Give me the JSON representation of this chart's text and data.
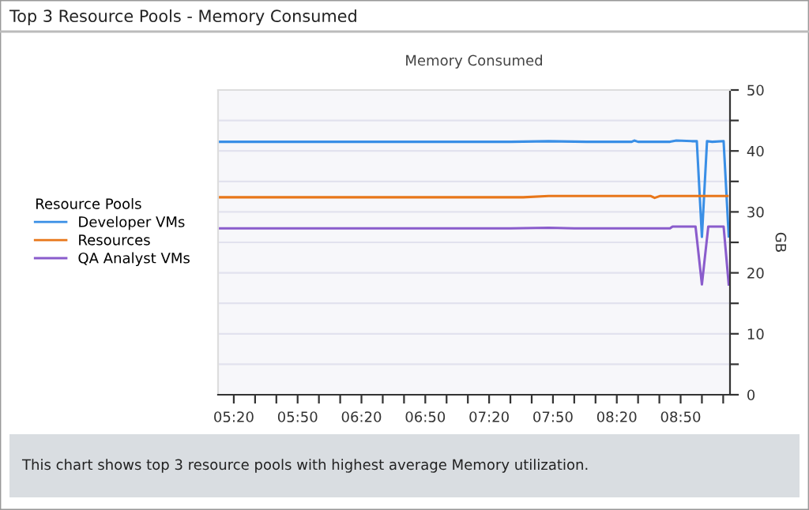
{
  "chart_data": {
    "type": "line",
    "title": "Top 3 Resource Pools - Memory Consumed",
    "subtitle": "Memory Consumed",
    "ylabel": "GB",
    "legend_title": "Resource Pools",
    "annotations": [
      "This chart shows top 3 resource pools with highest average Memory utilization."
    ],
    "series": [
      {
        "name": "Developer VMs",
        "color": "#3a8fe6",
        "x": [
          5.21,
          7.5,
          7.8,
          8.1,
          8.45,
          8.47,
          8.5,
          8.75,
          8.8,
          8.92,
          8.96,
          9.0,
          9.04,
          9.08,
          9.17,
          9.21
        ],
        "values": [
          41.5,
          41.5,
          41.6,
          41.5,
          41.5,
          41.7,
          41.5,
          41.5,
          41.7,
          41.6,
          41.6,
          25.9,
          41.6,
          41.5,
          41.6,
          26
        ]
      },
      {
        "name": "Resources",
        "color": "#e8771a",
        "x": [
          5.21,
          7.6,
          7.8,
          8.6,
          8.63,
          8.67,
          9.2
        ],
        "values": [
          32.4,
          32.4,
          32.6,
          32.6,
          32.3,
          32.6,
          32.6
        ]
      },
      {
        "name": "QA Analyst VMs",
        "color": "#8a5ccc",
        "x": [
          5.21,
          7.5,
          7.8,
          8.0,
          8.75,
          8.77,
          8.95,
          9.0,
          9.05,
          9.17,
          9.21
        ],
        "values": [
          27.3,
          27.3,
          27.4,
          27.3,
          27.3,
          27.6,
          27.6,
          18.1,
          27.6,
          27.6,
          18.1
        ]
      }
    ],
    "xlim": [
      5.21,
      9.22
    ],
    "ylim": [
      0,
      50
    ],
    "xticks": [
      {
        "value": 5.3333,
        "label": "05:20"
      },
      {
        "value": 5.5,
        "label": null
      },
      {
        "value": 5.6667,
        "label": null
      },
      {
        "value": 5.8333,
        "label": "05:50"
      },
      {
        "value": 6.0,
        "label": null
      },
      {
        "value": 6.1667,
        "label": null
      },
      {
        "value": 6.3333,
        "label": "06:20"
      },
      {
        "value": 6.5,
        "label": null
      },
      {
        "value": 6.6667,
        "label": null
      },
      {
        "value": 6.8333,
        "label": "06:50"
      },
      {
        "value": 7.0,
        "label": null
      },
      {
        "value": 7.1667,
        "label": null
      },
      {
        "value": 7.3333,
        "label": "07:20"
      },
      {
        "value": 7.5,
        "label": null
      },
      {
        "value": 7.6667,
        "label": null
      },
      {
        "value": 7.8333,
        "label": "07:50"
      },
      {
        "value": 8.0,
        "label": null
      },
      {
        "value": 8.1667,
        "label": null
      },
      {
        "value": 8.3333,
        "label": "08:20"
      },
      {
        "value": 8.5,
        "label": null
      },
      {
        "value": 8.6667,
        "label": null
      },
      {
        "value": 8.8333,
        "label": "08:50"
      },
      {
        "value": 9.0,
        "label": null
      },
      {
        "value": 9.1667,
        "label": null
      }
    ],
    "yticks": [
      0,
      {
        "value": 5,
        "label": null
      },
      10,
      {
        "value": 15,
        "label": null
      },
      20,
      {
        "value": 25,
        "label": null
      },
      30,
      {
        "value": 35,
        "label": null
      },
      40,
      {
        "value": 45,
        "label": null
      },
      50
    ],
    "grid": "y",
    "legend": "left",
    "marker": "none",
    "line_style": "solid"
  }
}
